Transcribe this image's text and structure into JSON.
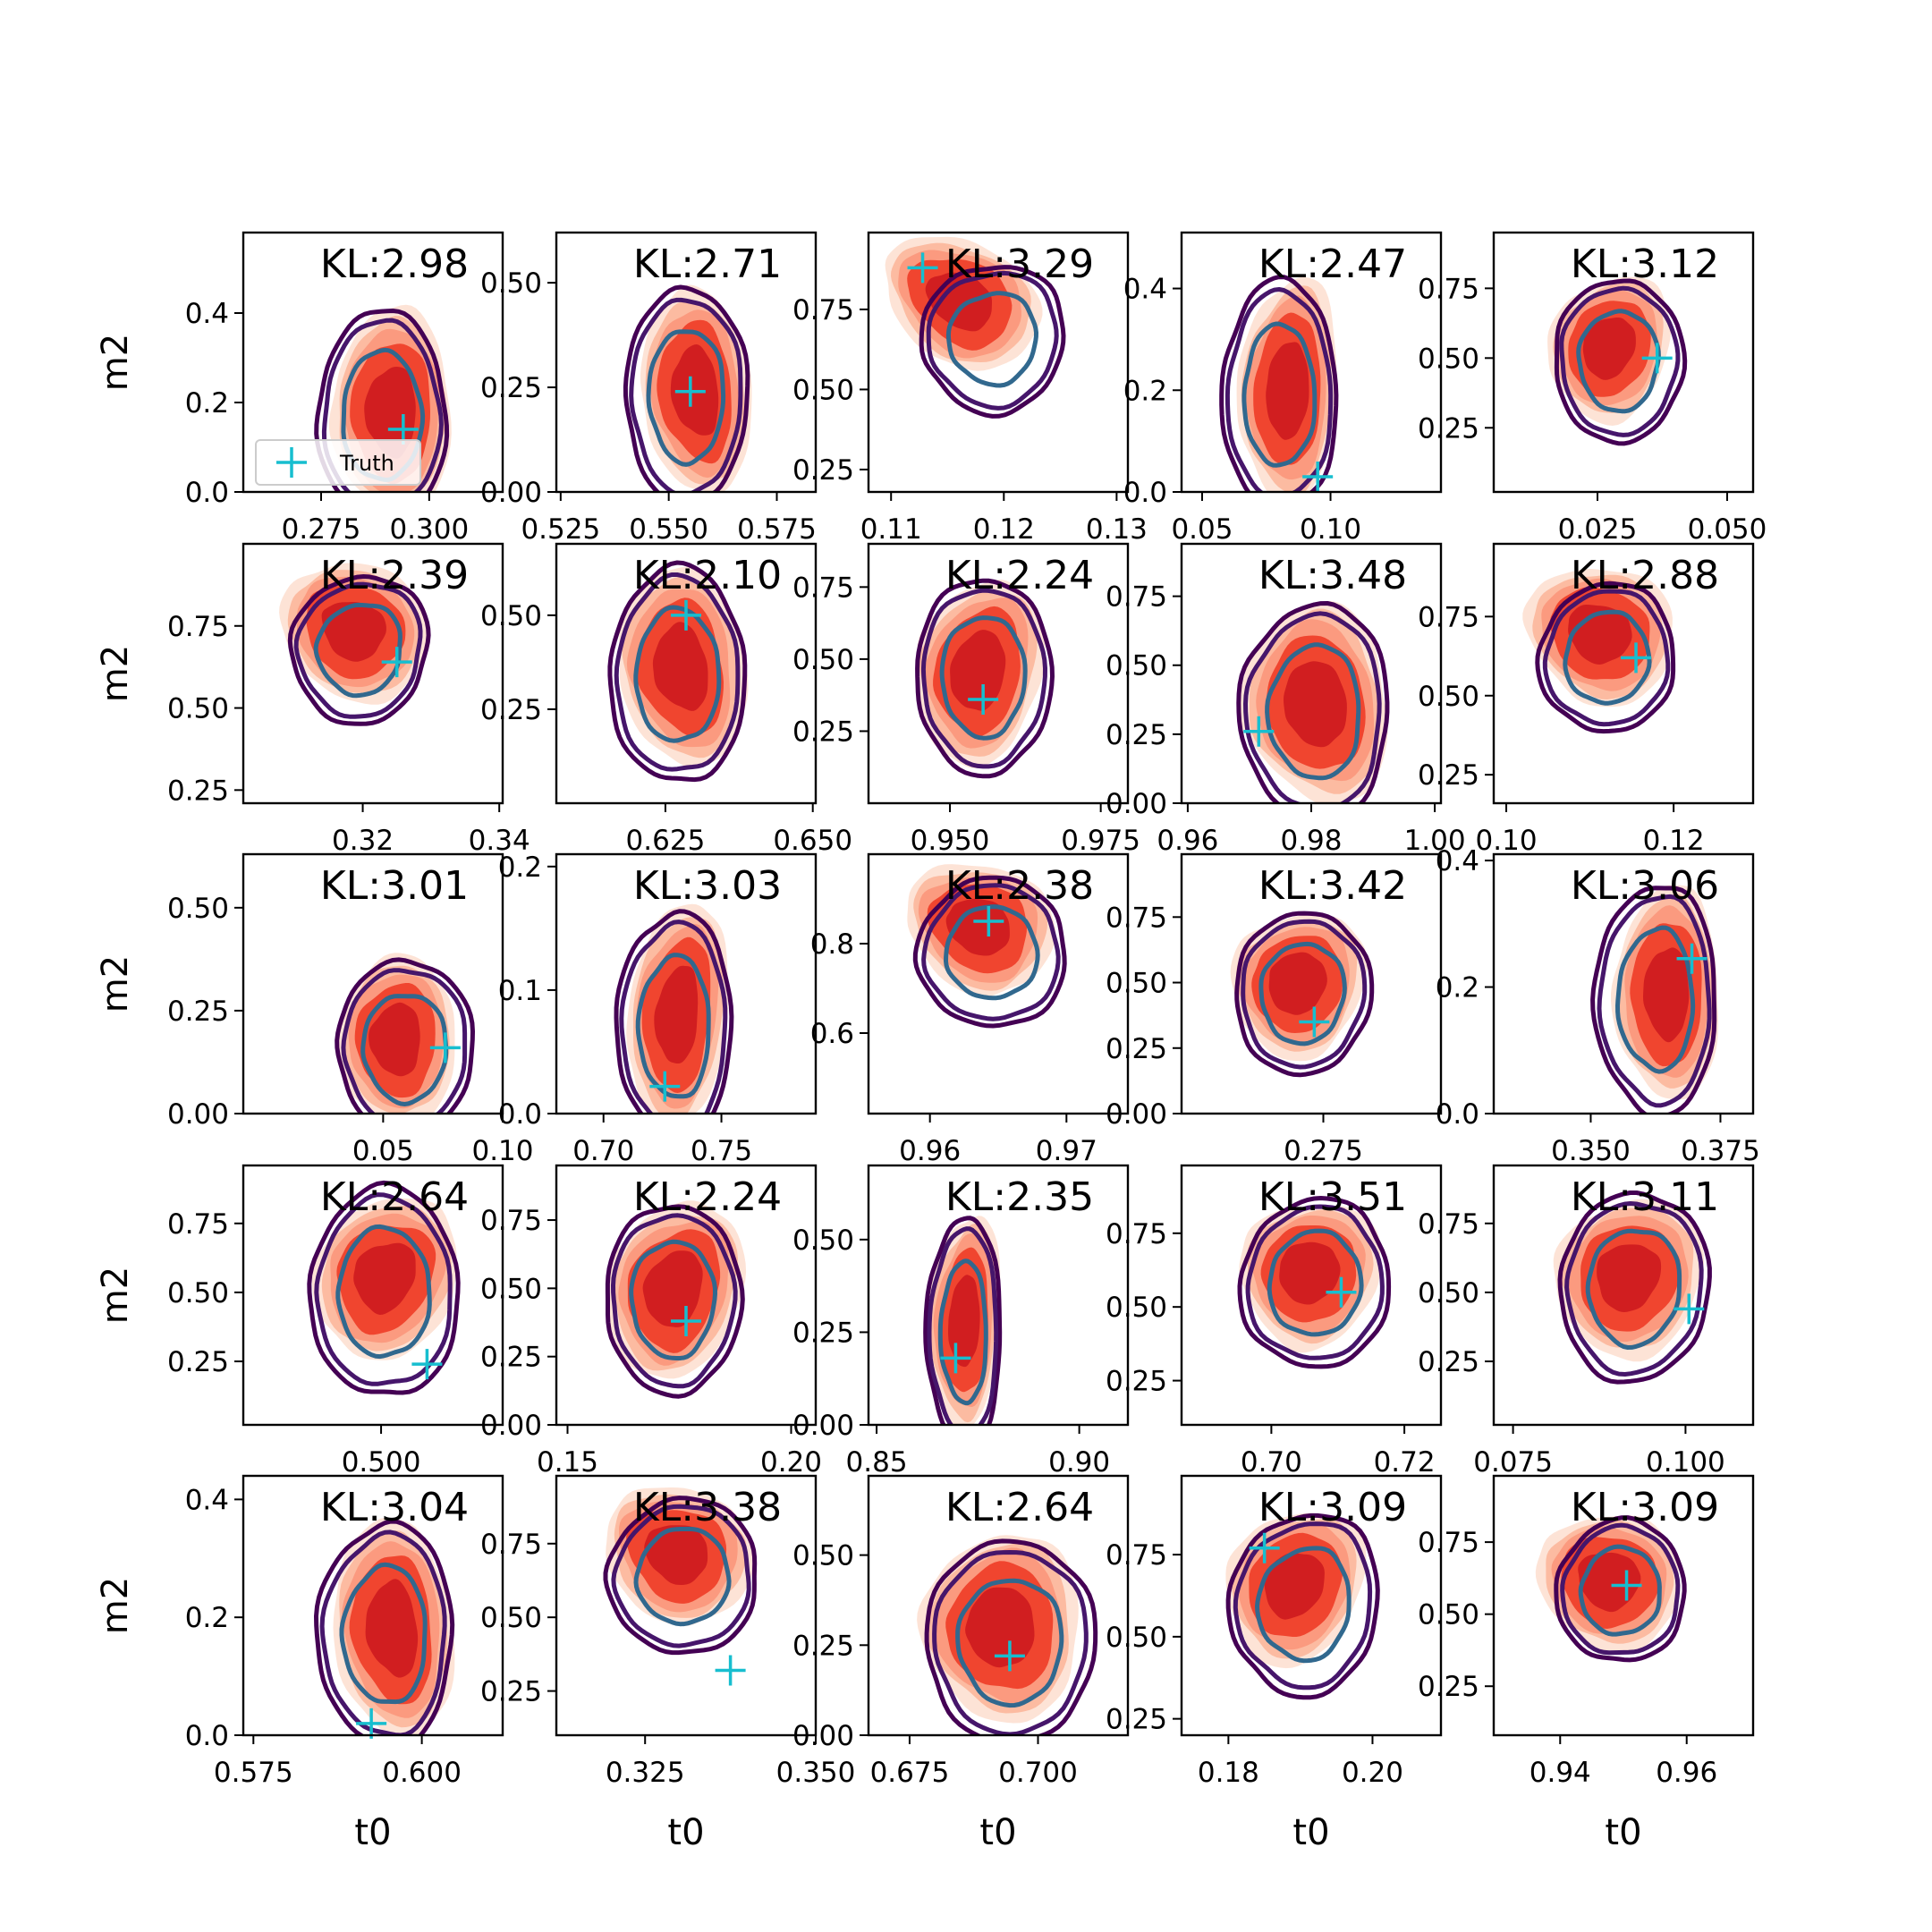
{
  "chart_data": {
    "type": "contour",
    "rows": 5,
    "cols": 5,
    "xlabel": "t0",
    "ylabel": "m2",
    "colors": {
      "reds_light": "#fde0d2",
      "reds_mid": "#fcbba1",
      "reds_3": "#fb9a7f",
      "reds_4": "#f0452f",
      "reds_dark": "#cb181d",
      "contour_outer": "#440154",
      "contour_mid": "#46166b",
      "contour_inner": "#31688e",
      "truth": "#17becf"
    },
    "legend": {
      "label": "Truth",
      "position": "lower-left"
    },
    "panels": [
      {
        "kl": "KL:2.98",
        "xticks": [
          "0.275",
          "0.300"
        ],
        "xtv": [
          0.275,
          0.3
        ],
        "xlim": [
          0.257,
          0.317
        ],
        "yticks": [
          "0.0",
          "0.2",
          "0.4"
        ],
        "ytv": [
          0.0,
          0.2,
          0.4
        ],
        "ylim": [
          0.0,
          0.58
        ],
        "truth": [
          0.294,
          0.14
        ],
        "post": [
          0.291,
          0.18,
          0.36,
          0.62,
          0
        ],
        "ref": [
          0.289,
          0.17,
          0.38,
          0.62,
          0
        ],
        "legend": true
      },
      {
        "kl": "KL:2.71",
        "xticks": [
          "0.525",
          "0.550",
          "0.575"
        ],
        "xtv": [
          0.525,
          0.55,
          0.575
        ],
        "xlim": [
          0.524,
          0.584
        ],
        "yticks": [
          "0.00",
          "0.25",
          "0.50"
        ],
        "ytv": [
          0.0,
          0.25,
          0.5
        ],
        "ylim": [
          0.0,
          0.62
        ],
        "truth": [
          0.555,
          0.24
        ],
        "post": [
          0.556,
          0.24,
          0.33,
          0.62,
          -0.1
        ],
        "ref": [
          0.554,
          0.23,
          0.36,
          0.64,
          0
        ],
        "legend": false
      },
      {
        "kl": "KL:3.29",
        "xticks": [
          "0.11",
          "0.12",
          "0.13"
        ],
        "xtv": [
          0.11,
          0.12,
          0.13
        ],
        "xlim": [
          0.108,
          0.131
        ],
        "yticks": [
          "0.25",
          "0.50",
          "0.75"
        ],
        "ytv": [
          0.25,
          0.5,
          0.75
        ],
        "ylim": [
          0.18,
          0.99
        ],
        "truth": [
          0.1128,
          0.88
        ],
        "post": [
          0.116,
          0.78,
          0.5,
          0.36,
          0.55
        ],
        "ref": [
          0.119,
          0.66,
          0.42,
          0.44,
          0.25
        ],
        "legend": false
      },
      {
        "kl": "KL:2.47",
        "xticks": [
          "0.05",
          "0.10"
        ],
        "xtv": [
          0.05,
          0.1
        ],
        "xlim": [
          0.042,
          0.143
        ],
        "yticks": [
          "0.0",
          "0.2",
          "0.4"
        ],
        "ytv": [
          0.0,
          0.2,
          0.4
        ],
        "ylim": [
          0.0,
          0.51
        ],
        "truth": [
          0.095,
          0.03
        ],
        "post": [
          0.083,
          0.2,
          0.3,
          0.68,
          0.05
        ],
        "ref": [
          0.08,
          0.19,
          0.34,
          0.68,
          0
        ],
        "legend": false
      },
      {
        "kl": "KL:3.12",
        "xticks": [
          "0.025",
          "0.050"
        ],
        "xtv": [
          0.025,
          0.05
        ],
        "xlim": [
          0.005,
          0.055
        ],
        "yticks": [
          "0.25",
          "0.50",
          "0.75"
        ],
        "ytv": [
          0.25,
          0.5,
          0.75
        ],
        "ylim": [
          0.02,
          0.95
        ],
        "truth": [
          0.0365,
          0.5
        ],
        "post": [
          0.027,
          0.54,
          0.36,
          0.44,
          0.35
        ],
        "ref": [
          0.029,
          0.49,
          0.38,
          0.48,
          0
        ],
        "legend": false
      },
      {
        "kl": "KL:2.39",
        "xticks": [
          "0.32",
          "0.34"
        ],
        "xtv": [
          0.32,
          0.34
        ],
        "xlim": [
          0.3025,
          0.3405
        ],
        "yticks": [
          "0.25",
          "0.50",
          "0.75"
        ],
        "ytv": [
          0.25,
          0.5,
          0.75
        ],
        "ylim": [
          0.21,
          1.0
        ],
        "truth": [
          0.325,
          0.64
        ],
        "post": [
          0.3185,
          0.74,
          0.46,
          0.4,
          0.55
        ],
        "ref": [
          0.3195,
          0.68,
          0.4,
          0.44,
          0.3
        ],
        "legend": false
      },
      {
        "kl": "KL:2.10",
        "xticks": [
          "0.625",
          "0.650"
        ],
        "xtv": [
          0.625,
          0.65
        ],
        "xlim": [
          0.6065,
          0.6505
        ],
        "yticks": [
          "0.25",
          "0.50"
        ],
        "ytv": [
          0.25,
          0.5
        ],
        "ylim": [
          0.0,
          0.69
        ],
        "truth": [
          0.6285,
          0.5
        ],
        "post": [
          0.6275,
          0.36,
          0.38,
          0.6,
          -0.15
        ],
        "ref": [
          0.627,
          0.34,
          0.4,
          0.64,
          0
        ],
        "legend": false
      },
      {
        "kl": "KL:2.24",
        "xticks": [
          "0.950",
          "0.975"
        ],
        "xtv": [
          0.95,
          0.975
        ],
        "xlim": [
          0.9365,
          0.9795
        ],
        "yticks": [
          "0.25",
          "0.50",
          "0.75"
        ],
        "ytv": [
          0.25,
          0.5,
          0.75
        ],
        "ylim": [
          0.0,
          0.9
        ],
        "truth": [
          0.9555,
          0.36
        ],
        "post": [
          0.9545,
          0.46,
          0.38,
          0.56,
          0.2
        ],
        "ref": [
          0.9555,
          0.44,
          0.4,
          0.58,
          0
        ],
        "legend": false
      },
      {
        "kl": "KL:3.48",
        "xticks": [
          "0.96",
          "0.98",
          "1.00"
        ],
        "xtv": [
          0.96,
          0.98,
          1.0
        ],
        "xlim": [
          0.959,
          1.001
        ],
        "yticks": [
          "0.00",
          "0.25",
          "0.50",
          "0.75"
        ],
        "ytv": [
          0.0,
          0.25,
          0.5,
          0.75
        ],
        "ylim": [
          0.0,
          0.94
        ],
        "truth": [
          0.9715,
          0.26
        ],
        "post": [
          0.9805,
          0.36,
          0.44,
          0.6,
          -0.15
        ],
        "ref": [
          0.9805,
          0.33,
          0.44,
          0.64,
          0
        ],
        "legend": false
      },
      {
        "kl": "KL:2.88",
        "xticks": [
          "0.10",
          "0.12"
        ],
        "xtv": [
          0.1,
          0.12
        ],
        "xlim": [
          0.0985,
          0.1295
        ],
        "yticks": [
          "0.25",
          "0.50",
          "0.75"
        ],
        "ytv": [
          0.25,
          0.5,
          0.75
        ],
        "ylim": [
          0.16,
          0.98
        ],
        "truth": [
          0.1155,
          0.62
        ],
        "post": [
          0.111,
          0.7,
          0.46,
          0.4,
          0.5
        ],
        "ref": [
          0.112,
          0.62,
          0.4,
          0.44,
          0.2
        ],
        "legend": false
      },
      {
        "kl": "KL:3.01",
        "xticks": [
          "0.05",
          "0.10"
        ],
        "xtv": [
          0.05,
          0.1
        ],
        "xlim": [
          -0.0085,
          0.1
        ],
        "yticks": [
          "0.00",
          "0.25",
          "0.50"
        ],
        "ytv": [
          0.0,
          0.25,
          0.5
        ],
        "ylim": [
          0.0,
          0.63
        ],
        "truth": [
          0.076,
          0.16
        ],
        "post": [
          0.055,
          0.18,
          0.36,
          0.5,
          0
        ],
        "ref": [
          0.059,
          0.16,
          0.4,
          0.52,
          0
        ],
        "legend": false
      },
      {
        "kl": "KL:3.03",
        "xticks": [
          "0.70",
          "0.75"
        ],
        "xtv": [
          0.7,
          0.75
        ],
        "xlim": [
          0.68,
          0.79
        ],
        "yticks": [
          "0.0",
          "0.1",
          "0.2"
        ],
        "ytv": [
          0.0,
          0.1,
          0.2
        ],
        "ylim": [
          0.0,
          0.21
        ],
        "truth": [
          0.726,
          0.022
        ],
        "post": [
          0.731,
          0.08,
          0.3,
          0.68,
          0.1
        ],
        "ref": [
          0.73,
          0.07,
          0.34,
          0.68,
          0
        ],
        "legend": false
      },
      {
        "kl": "KL:2.38",
        "xticks": [
          "0.96",
          "0.97"
        ],
        "xtv": [
          0.96,
          0.97
        ],
        "xlim": [
          0.9555,
          0.9745
        ],
        "yticks": [
          "0.6",
          "0.8"
        ],
        "ytv": [
          0.6,
          0.8
        ],
        "ylim": [
          0.42,
          1.0
        ],
        "truth": [
          0.9643,
          0.85
        ],
        "post": [
          0.9635,
          0.84,
          0.46,
          0.38,
          0.45
        ],
        "ref": [
          0.9645,
          0.78,
          0.44,
          0.44,
          0.15
        ],
        "legend": false
      },
      {
        "kl": "KL:3.42",
        "xticks": [
          "0.250",
          "0.275"
        ],
        "xtv": [
          0.25,
          0.275
        ],
        "xlim": [
          0.2515,
          0.2945
        ],
        "yticks": [
          "0.00",
          "0.25",
          "0.50",
          "0.75"
        ],
        "ytv": [
          0.0,
          0.25,
          0.5,
          0.75
        ],
        "ylim": [
          0.0,
          0.99
        ],
        "truth": [
          0.2735,
          0.35
        ],
        "post": [
          0.2705,
          0.5,
          0.4,
          0.44,
          0.4
        ],
        "ref": [
          0.2715,
          0.46,
          0.4,
          0.48,
          0.1
        ],
        "legend": false
      },
      {
        "kl": "KL:3.06",
        "xticks": [
          "0.350",
          "0.375"
        ],
        "xtv": [
          0.35,
          0.375
        ],
        "xlim": [
          0.3313,
          0.3813
        ],
        "yticks": [
          "0.0",
          "0.2",
          "0.4"
        ],
        "ytv": [
          0.0,
          0.2,
          0.4
        ],
        "ylim": [
          0.0,
          0.41
        ],
        "truth": [
          0.3695,
          0.245
        ],
        "post": [
          0.3645,
          0.19,
          0.32,
          0.64,
          0
        ],
        "ref": [
          0.3625,
          0.18,
          0.36,
          0.68,
          0
        ],
        "legend": false
      },
      {
        "kl": "KL:2.64",
        "xticks": [
          "0.500",
          "0.525"
        ],
        "xtv": [
          0.5,
          0.525
        ],
        "xlim": [
          0.4745,
          0.5225
        ],
        "yticks": [
          "0.25",
          "0.50",
          "0.75"
        ],
        "ytv": [
          0.25,
          0.5,
          0.75
        ],
        "ylim": [
          0.02,
          0.96
        ],
        "truth": [
          0.5085,
          0.24
        ],
        "post": [
          0.5005,
          0.56,
          0.42,
          0.5,
          0.45
        ],
        "ref": [
          0.5005,
          0.5,
          0.44,
          0.62,
          0
        ],
        "legend": false
      },
      {
        "kl": "KL:2.24",
        "xticks": [
          "0.15",
          "0.20"
        ],
        "xtv": [
          0.15,
          0.2
        ],
        "xlim": [
          0.1475,
          0.2055
        ],
        "yticks": [
          "0.00",
          "0.25",
          "0.50",
          "0.75"
        ],
        "ytv": [
          0.0,
          0.25,
          0.5,
          0.75
        ],
        "ylim": [
          0.0,
          0.95
        ],
        "truth": [
          0.1765,
          0.38
        ],
        "post": [
          0.1735,
          0.5,
          0.4,
          0.54,
          0.3
        ],
        "ref": [
          0.1735,
          0.46,
          0.4,
          0.56,
          0
        ],
        "legend": false
      },
      {
        "kl": "KL:2.35",
        "xticks": [
          "0.85",
          "0.90"
        ],
        "xtv": [
          0.85,
          0.9
        ],
        "xlim": [
          0.848,
          0.912
        ],
        "yticks": [
          "0.00",
          "0.25",
          "0.50"
        ],
        "ytv": [
          0.0,
          0.25,
          0.5
        ],
        "ylim": [
          0.0,
          0.7
        ],
        "truth": [
          0.8695,
          0.18
        ],
        "post": [
          0.8715,
          0.28,
          0.22,
          0.64,
          0.05
        ],
        "ref": [
          0.8715,
          0.25,
          0.22,
          0.68,
          0
        ],
        "legend": false
      },
      {
        "kl": "KL:3.51",
        "xticks": [
          "0.70",
          "0.72"
        ],
        "xtv": [
          0.7,
          0.72
        ],
        "xlim": [
          0.6865,
          0.7255
        ],
        "yticks": [
          "0.25",
          "0.50",
          "0.75"
        ],
        "ytv": [
          0.25,
          0.5,
          0.75
        ],
        "ylim": [
          0.1,
          0.98
        ],
        "truth": [
          0.7105,
          0.55
        ],
        "post": [
          0.7055,
          0.62,
          0.42,
          0.44,
          0.5
        ],
        "ref": [
          0.7065,
          0.58,
          0.44,
          0.5,
          0.15
        ],
        "legend": false
      },
      {
        "kl": "KL:3.11",
        "xticks": [
          "0.075",
          "0.100"
        ],
        "xtv": [
          0.075,
          0.1
        ],
        "xlim": [
          0.0722,
          0.1098
        ],
        "yticks": [
          "0.25",
          "0.50",
          "0.75"
        ],
        "ytv": [
          0.25,
          0.5,
          0.75
        ],
        "ylim": [
          0.02,
          0.96
        ],
        "truth": [
          0.1005,
          0.44
        ],
        "post": [
          0.0915,
          0.56,
          0.44,
          0.48,
          0.45
        ],
        "ref": [
          0.0925,
          0.52,
          0.44,
          0.56,
          0.1
        ],
        "legend": false
      },
      {
        "kl": "KL:3.04",
        "xticks": [
          "0.575",
          "0.600"
        ],
        "xtv": [
          0.575,
          0.6
        ],
        "xlim": [
          0.5735,
          0.612
        ],
        "yticks": [
          "0.0",
          "0.2",
          "0.4"
        ],
        "ytv": [
          0.0,
          0.2,
          0.4
        ],
        "ylim": [
          0.0,
          0.44
        ],
        "truth": [
          0.5925,
          0.02
        ],
        "post": [
          0.5955,
          0.18,
          0.36,
          0.66,
          -0.1
        ],
        "ref": [
          0.5945,
          0.17,
          0.4,
          0.66,
          0
        ],
        "legend": false
      },
      {
        "kl": "KL:3.38",
        "xticks": [
          "0.325",
          "0.350"
        ],
        "xtv": [
          0.325,
          0.35
        ],
        "xlim": [
          0.312,
          0.35
        ],
        "yticks": [
          "0.25",
          "0.50",
          "0.75"
        ],
        "ytv": [
          0.25,
          0.5,
          0.75
        ],
        "ylim": [
          0.1,
          0.98
        ],
        "truth": [
          0.3375,
          0.32
        ],
        "post": [
          0.3295,
          0.72,
          0.46,
          0.4,
          0.55
        ],
        "ref": [
          0.3305,
          0.64,
          0.44,
          0.46,
          0.3
        ],
        "legend": false
      },
      {
        "kl": "KL:2.64",
        "xticks": [
          "0.675",
          "0.700"
        ],
        "xtv": [
          0.675,
          0.7
        ],
        "xlim": [
          0.667,
          0.7175
        ],
        "yticks": [
          "0.00",
          "0.25",
          "0.50"
        ],
        "ytv": [
          0.0,
          0.25,
          0.5
        ],
        "ylim": [
          0.0,
          0.72
        ],
        "truth": [
          0.6945,
          0.22
        ],
        "post": [
          0.6925,
          0.3,
          0.48,
          0.56,
          0
        ],
        "ref": [
          0.6945,
          0.26,
          0.5,
          0.6,
          0
        ],
        "legend": false
      },
      {
        "kl": "KL:3.09",
        "xticks": [
          "0.18",
          "0.20"
        ],
        "xtv": [
          0.18,
          0.2
        ],
        "xlim": [
          0.1735,
          0.2095
        ],
        "yticks": [
          "0.25",
          "0.50",
          "0.75"
        ],
        "ytv": [
          0.25,
          0.5,
          0.75
        ],
        "ylim": [
          0.2,
          0.99
        ],
        "truth": [
          0.185,
          0.77
        ],
        "post": [
          0.189,
          0.66,
          0.4,
          0.48,
          0.5
        ],
        "ref": [
          0.1905,
          0.6,
          0.44,
          0.54,
          0.15
        ],
        "legend": false
      },
      {
        "kl": "KL:3.09",
        "xticks": [
          "0.94",
          "0.96"
        ],
        "xtv": [
          0.94,
          0.96
        ],
        "xlim": [
          0.9295,
          0.9705
        ],
        "yticks": [
          "0.25",
          "0.50",
          "0.75"
        ],
        "ytv": [
          0.25,
          0.5,
          0.75
        ],
        "ylim": [
          0.08,
          0.98
        ],
        "truth": [
          0.9505,
          0.6
        ],
        "post": [
          0.9475,
          0.62,
          0.44,
          0.4,
          0.45
        ],
        "ref": [
          0.9495,
          0.58,
          0.38,
          0.42,
          0.1
        ],
        "legend": false
      }
    ]
  }
}
